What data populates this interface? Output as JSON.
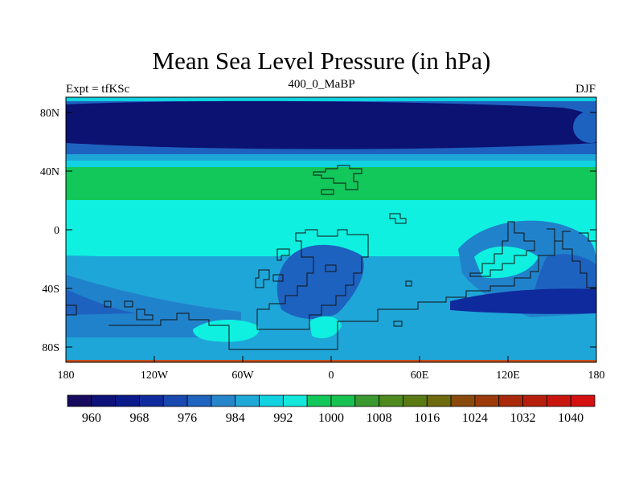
{
  "map": {
    "title": "Mean Sea Level Pressure (in hPa)",
    "subtitle": "400_0_MaBP",
    "left_label": "Expt = tfKSc",
    "right_label": "DJF",
    "lat_ticks": [
      "80N",
      "40N",
      "0",
      "40S",
      "80S"
    ],
    "lon_ticks": [
      "180",
      "120W",
      "60W",
      "0",
      "60E",
      "120E",
      "180"
    ]
  },
  "colorbar": {
    "labels": [
      "960",
      "968",
      "976",
      "984",
      "992",
      "1000",
      "1008",
      "1016",
      "1024",
      "1032",
      "1040"
    ],
    "colors": [
      "#160b5e",
      "#0d127a",
      "#0a1a8a",
      "#0f2b9e",
      "#1848b0",
      "#1e64c0",
      "#2686cc",
      "#1fa9d8",
      "#10d2e0",
      "#14e8dc",
      "#12c85a",
      "#18c250",
      "#3a9a30",
      "#4e8a1e",
      "#5a7a14",
      "#6e6a0e",
      "#8a4a0c",
      "#9c3a0a",
      "#a82a0a",
      "#b81e0c",
      "#c8160e",
      "#d41010"
    ]
  },
  "palette": {
    "darkest": "#0b1272",
    "dark_blue": "#0f2a9c",
    "mid_blue": "#1e62c0",
    "blue": "#2182cc",
    "light_blue": "#1fa6d8",
    "cyan": "#0ff0e0",
    "green": "#12c85a",
    "orange": "#c05020"
  }
}
